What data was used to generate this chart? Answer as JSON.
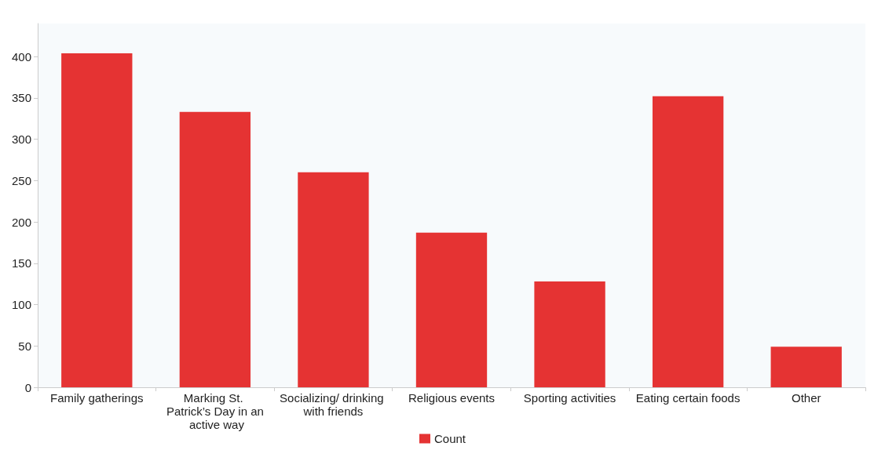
{
  "chart_data": {
    "type": "bar",
    "categories": [
      "Family gatherings",
      "Marking St. Patrick’s Day in an active way",
      "Socializing/ drinking with friends",
      "Religious events",
      "Sporting activities",
      "Eating certain foods",
      "Other"
    ],
    "series": [
      {
        "name": "Count",
        "color": "#e53333",
        "values": [
          404,
          333,
          260,
          187,
          128,
          352,
          49
        ]
      }
    ],
    "ylim": [
      0,
      440
    ],
    "yticks": [
      0,
      50,
      100,
      150,
      200,
      250,
      300,
      350,
      400
    ],
    "legend": "bottom",
    "grid": false
  }
}
